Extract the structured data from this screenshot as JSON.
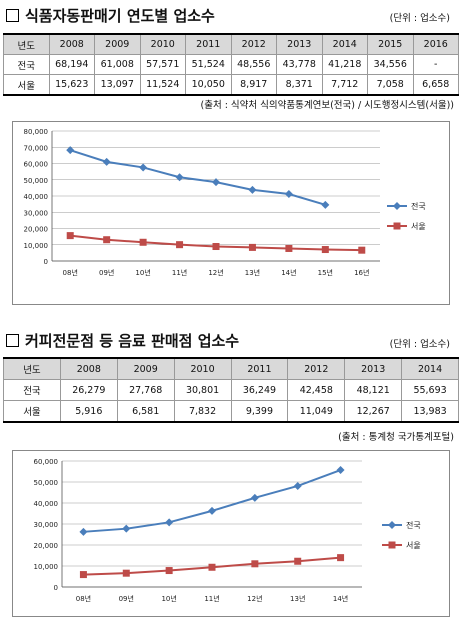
{
  "section1": {
    "title": "식품자동판매기 연도별 업소수",
    "unit": "(단위 : 업소수)",
    "table": {
      "header": [
        "년도",
        "2008",
        "2009",
        "2010",
        "2011",
        "2012",
        "2013",
        "2014",
        "2015",
        "2016"
      ],
      "rows": [
        [
          "전국",
          "68,194",
          "61,008",
          "57,571",
          "51,524",
          "48,556",
          "43,778",
          "41,218",
          "34,556",
          "-"
        ],
        [
          "서울",
          "15,623",
          "13,097",
          "11,524",
          "10,050",
          "8,917",
          "8,371",
          "7,712",
          "7,058",
          "6,658"
        ]
      ]
    },
    "source": "(출처 : 식약처 식의약품통계연보(전국) / 시도행정시스템(서울))"
  },
  "section2": {
    "title": "커피전문점 등 음료 판매점 업소수",
    "unit": "(단위 : 업소수)",
    "table": {
      "header": [
        "년도",
        "2008",
        "2009",
        "2010",
        "2011",
        "2012",
        "2013",
        "2014"
      ],
      "rows": [
        [
          "전국",
          "26,279",
          "27,768",
          "30,801",
          "36,249",
          "42,458",
          "48,121",
          "55,693"
        ],
        [
          "서울",
          "5,916",
          "6,581",
          "7,832",
          "9,399",
          "11,049",
          "12,267",
          "13,983"
        ]
      ]
    },
    "source": "(출처 : 통계청 국가통계포털)"
  },
  "chart_data": [
    {
      "type": "line",
      "categories": [
        "08년",
        "09년",
        "10년",
        "11년",
        "12년",
        "13년",
        "14년",
        "15년",
        "16년"
      ],
      "ylim": [
        0,
        80000
      ],
      "yticks": [
        "0",
        "10,000",
        "20,000",
        "30,000",
        "40,000",
        "50,000",
        "60,000",
        "70,000",
        "80,000"
      ],
      "ytick_values": [
        0,
        10000,
        20000,
        30000,
        40000,
        50000,
        60000,
        70000,
        80000
      ],
      "grid": true,
      "legend_position": "right",
      "series": [
        {
          "name": "전국",
          "color": "#4a7ebb",
          "marker": "diamond",
          "values": [
            68194,
            61008,
            57571,
            51524,
            48556,
            43778,
            41218,
            34556,
            null
          ]
        },
        {
          "name": "서울",
          "color": "#be4b48",
          "marker": "square",
          "values": [
            15623,
            13097,
            11524,
            10050,
            8917,
            8371,
            7712,
            7058,
            6658
          ]
        }
      ]
    },
    {
      "type": "line",
      "categories": [
        "08년",
        "09년",
        "10년",
        "11년",
        "12년",
        "13년",
        "14년"
      ],
      "ylim": [
        0,
        60000
      ],
      "yticks": [
        "0",
        "10,000",
        "20,000",
        "30,000",
        "40,000",
        "50,000",
        "60,000"
      ],
      "ytick_values": [
        0,
        10000,
        20000,
        30000,
        40000,
        50000,
        60000
      ],
      "grid": true,
      "legend_position": "right",
      "series": [
        {
          "name": "전국",
          "color": "#4a7ebb",
          "marker": "diamond",
          "values": [
            26279,
            27768,
            30801,
            36249,
            42458,
            48121,
            55693
          ]
        },
        {
          "name": "서울",
          "color": "#be4b48",
          "marker": "square",
          "values": [
            5916,
            6581,
            7832,
            9399,
            11049,
            12267,
            13983
          ]
        }
      ]
    }
  ]
}
